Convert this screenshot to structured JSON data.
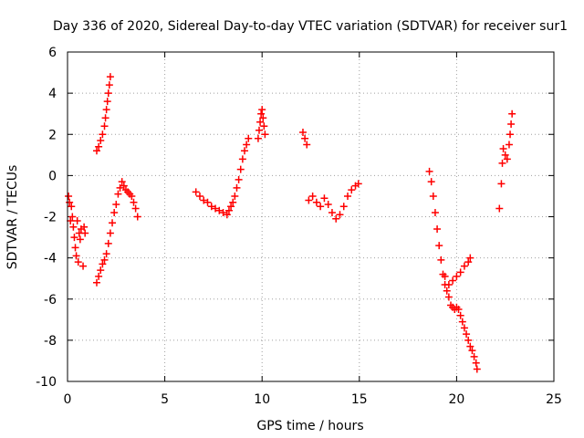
{
  "chart_data": {
    "type": "scatter",
    "title": "Day 336 of 2020, Sidereal Day-to-day VTEC variation (SDTVAR) for receiver sur1",
    "xlabel": "GPS time / hours",
    "ylabel": "SDTVAR / TECUs",
    "xlim": [
      0,
      25
    ],
    "ylim": [
      -10,
      6
    ],
    "xticks": [
      "0",
      "5",
      "10",
      "15",
      "20",
      "25"
    ],
    "yticks": [
      "-10",
      "-8",
      "-6",
      "-4",
      "-2",
      "0",
      "2",
      "4",
      "6"
    ],
    "grid": true,
    "marker": "plus",
    "marker_color": "#ff0000",
    "series": [
      {
        "name": "sur1",
        "points": [
          [
            0.05,
            -1.0
          ],
          [
            0.1,
            -1.3
          ],
          [
            0.15,
            -2.2
          ],
          [
            0.2,
            -1.5
          ],
          [
            0.25,
            -2.0
          ],
          [
            0.3,
            -2.5
          ],
          [
            0.35,
            -3.0
          ],
          [
            0.4,
            -3.5
          ],
          [
            0.45,
            -3.9
          ],
          [
            0.5,
            -2.2
          ],
          [
            0.55,
            -4.2
          ],
          [
            0.6,
            -2.8
          ],
          [
            0.65,
            -3.1
          ],
          [
            0.7,
            -2.6
          ],
          [
            0.8,
            -4.4
          ],
          [
            0.85,
            -2.5
          ],
          [
            0.9,
            -2.8
          ],
          [
            1.5,
            -5.2
          ],
          [
            1.6,
            -4.9
          ],
          [
            1.7,
            -4.6
          ],
          [
            1.8,
            -4.3
          ],
          [
            1.9,
            -4.1
          ],
          [
            2.0,
            -3.8
          ],
          [
            2.1,
            -3.3
          ],
          [
            2.2,
            -2.8
          ],
          [
            2.3,
            -2.3
          ],
          [
            2.4,
            -1.8
          ],
          [
            2.5,
            -1.4
          ],
          [
            2.6,
            -0.9
          ],
          [
            2.7,
            -0.6
          ],
          [
            2.8,
            -0.3
          ],
          [
            2.9,
            -0.5
          ],
          [
            3.0,
            -0.7
          ],
          [
            3.1,
            -0.8
          ],
          [
            3.2,
            -0.9
          ],
          [
            3.3,
            -1.0
          ],
          [
            3.4,
            -1.3
          ],
          [
            3.5,
            -1.6
          ],
          [
            3.6,
            -2.0
          ],
          [
            1.5,
            1.2
          ],
          [
            1.6,
            1.4
          ],
          [
            1.7,
            1.7
          ],
          [
            1.8,
            2.0
          ],
          [
            1.9,
            2.4
          ],
          [
            1.95,
            2.8
          ],
          [
            2.0,
            3.2
          ],
          [
            2.05,
            3.6
          ],
          [
            2.1,
            4.0
          ],
          [
            2.15,
            4.4
          ],
          [
            2.2,
            4.8
          ],
          [
            6.6,
            -0.8
          ],
          [
            6.8,
            -1.0
          ],
          [
            7.0,
            -1.2
          ],
          [
            7.2,
            -1.3
          ],
          [
            7.4,
            -1.5
          ],
          [
            7.6,
            -1.6
          ],
          [
            7.8,
            -1.7
          ],
          [
            8.0,
            -1.8
          ],
          [
            8.2,
            -1.9
          ],
          [
            8.3,
            -1.7
          ],
          [
            8.4,
            -1.5
          ],
          [
            8.5,
            -1.3
          ],
          [
            8.6,
            -1.0
          ],
          [
            8.7,
            -0.6
          ],
          [
            8.8,
            -0.2
          ],
          [
            8.9,
            0.3
          ],
          [
            9.0,
            0.8
          ],
          [
            9.1,
            1.2
          ],
          [
            9.2,
            1.5
          ],
          [
            9.3,
            1.8
          ],
          [
            9.8,
            1.8
          ],
          [
            9.85,
            2.2
          ],
          [
            9.9,
            2.6
          ],
          [
            9.95,
            3.0
          ],
          [
            10.0,
            3.2
          ],
          [
            10.05,
            2.8
          ],
          [
            10.1,
            2.4
          ],
          [
            10.15,
            2.0
          ],
          [
            12.1,
            2.1
          ],
          [
            12.2,
            1.8
          ],
          [
            12.3,
            1.5
          ],
          [
            12.4,
            -1.2
          ],
          [
            12.6,
            -1.0
          ],
          [
            12.8,
            -1.3
          ],
          [
            13.0,
            -1.5
          ],
          [
            13.2,
            -1.1
          ],
          [
            13.4,
            -1.4
          ],
          [
            13.6,
            -1.8
          ],
          [
            13.8,
            -2.1
          ],
          [
            14.0,
            -1.9
          ],
          [
            14.2,
            -1.5
          ],
          [
            14.4,
            -1.0
          ],
          [
            14.6,
            -0.7
          ],
          [
            14.8,
            -0.5
          ],
          [
            14.95,
            -0.4
          ],
          [
            18.6,
            0.2
          ],
          [
            18.7,
            -0.3
          ],
          [
            18.8,
            -1.0
          ],
          [
            18.9,
            -1.8
          ],
          [
            19.0,
            -2.6
          ],
          [
            19.1,
            -3.4
          ],
          [
            19.2,
            -4.1
          ],
          [
            19.3,
            -4.8
          ],
          [
            19.4,
            -5.3
          ],
          [
            19.5,
            -5.6
          ],
          [
            19.6,
            -5.9
          ],
          [
            19.7,
            -6.3
          ],
          [
            19.8,
            -6.4
          ],
          [
            19.9,
            -6.5
          ],
          [
            20.0,
            -6.4
          ],
          [
            20.1,
            -6.5
          ],
          [
            20.2,
            -6.8
          ],
          [
            20.3,
            -7.1
          ],
          [
            20.4,
            -7.4
          ],
          [
            20.5,
            -7.7
          ],
          [
            20.6,
            -8.0
          ],
          [
            20.7,
            -8.3
          ],
          [
            20.8,
            -8.5
          ],
          [
            20.9,
            -8.8
          ],
          [
            21.0,
            -9.1
          ],
          [
            21.05,
            -9.4
          ],
          [
            19.4,
            -4.9
          ],
          [
            19.6,
            -5.3
          ],
          [
            19.8,
            -5.1
          ],
          [
            20.0,
            -4.9
          ],
          [
            20.2,
            -4.7
          ],
          [
            20.4,
            -4.4
          ],
          [
            20.6,
            -4.2
          ],
          [
            20.7,
            -4.0
          ],
          [
            22.2,
            -1.6
          ],
          [
            22.3,
            -0.4
          ],
          [
            22.35,
            0.6
          ],
          [
            22.4,
            1.3
          ],
          [
            22.5,
            1.0
          ],
          [
            22.6,
            0.8
          ],
          [
            22.7,
            1.5
          ],
          [
            22.75,
            2.0
          ],
          [
            22.8,
            2.5
          ],
          [
            22.85,
            3.0
          ]
        ]
      }
    ]
  }
}
